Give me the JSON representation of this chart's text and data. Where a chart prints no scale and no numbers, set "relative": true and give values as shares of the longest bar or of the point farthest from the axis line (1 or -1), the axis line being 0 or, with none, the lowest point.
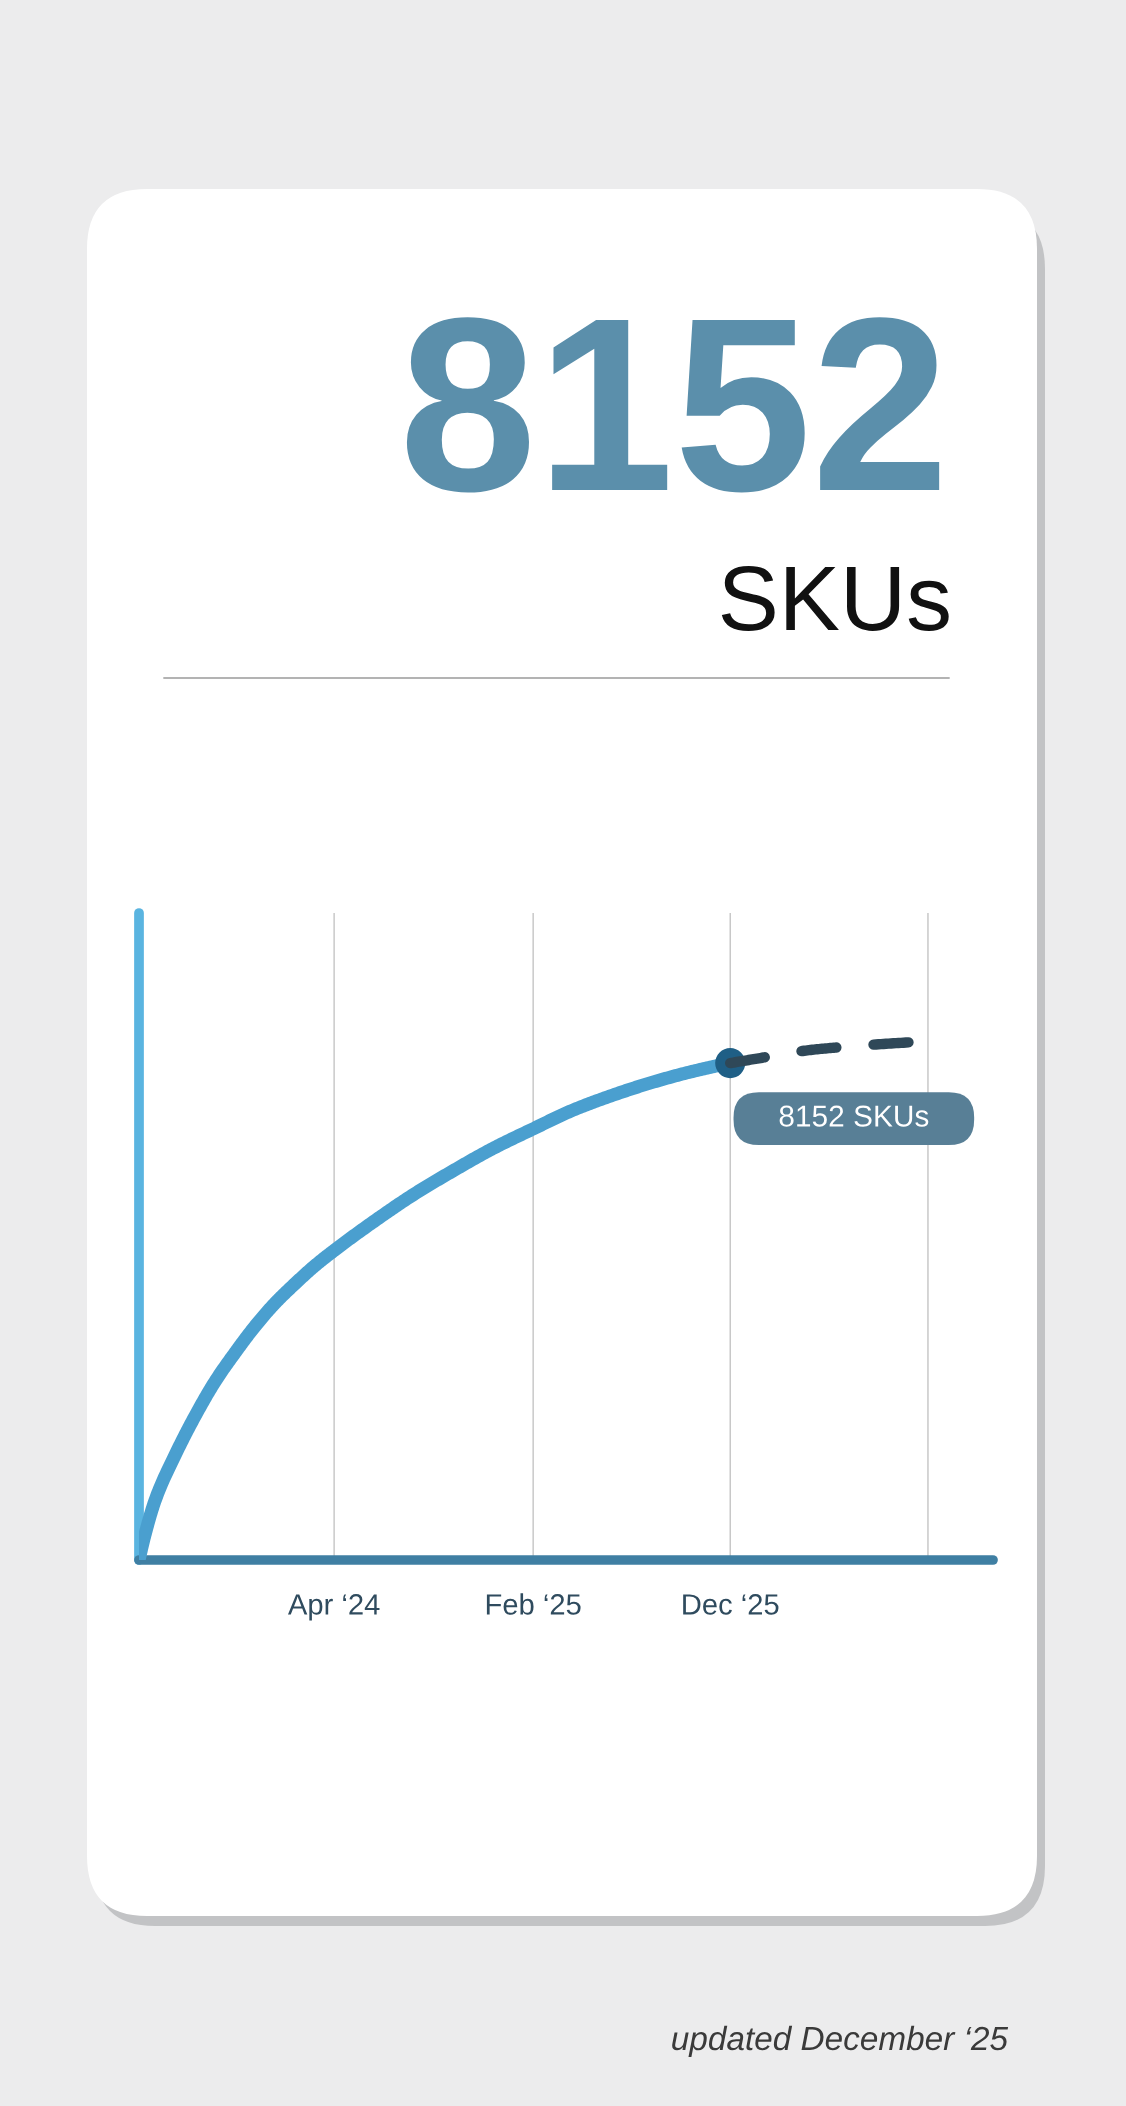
{
  "chart_data": {
    "type": "line",
    "title": "8152",
    "subtitle": "SKUs",
    "relative": true,
    "series": [
      {
        "type": "line",
        "color": "#4a9fcf",
        "line_style": "solid",
        "x": [
          "2023-06-06",
          "2023-06-15",
          "2023-07",
          "2023-08",
          "2023-09",
          "2023-10",
          "2023-11",
          "2023-12",
          "2024-01",
          "2024-02",
          "2024-03",
          "2024-04",
          "2024-06",
          "2024-08",
          "2024-10",
          "2024-12",
          "2025-02",
          "2025-04",
          "2025-06",
          "2025-08",
          "2025-10",
          "2025-12"
        ],
        "values": [
          0,
          0.048,
          0.116,
          0.204,
          0.28,
          0.345,
          0.401,
          0.451,
          0.496,
          0.534,
          0.567,
          0.598,
          0.654,
          0.706,
          0.752,
          0.795,
          0.833,
          0.868,
          0.897,
          0.922,
          0.943,
          0.96
        ]
      },
      {
        "type": "line",
        "color": "#2f4858",
        "line_style": "dashed",
        "x": [
          "2025-12",
          "2026-02",
          "2026-04",
          "2026-06",
          "2026-09"
        ],
        "values": [
          0.96,
          0.973,
          0.985,
          0.992,
          1
        ]
      },
      {
        "type": "scatter",
        "color": "#1f5f86",
        "marker": "circle",
        "x": [
          "2025-12"
        ],
        "values": [
          0.96
        ]
      }
    ],
    "xlim": [
      "2023-06-06",
      "2027-01-09"
    ],
    "xticks": [
      {
        "value": "2024-04",
        "label": "Apr ‘24"
      },
      {
        "value": "2025-02",
        "label": "Feb ‘25"
      },
      {
        "value": "2025-12",
        "label": "Dec ‘25"
      },
      {
        "value": "2026-10",
        "label": null
      }
    ],
    "grid": "x",
    "tick_labels": "x",
    "annotations": [
      {
        "text": "8152 SKUs",
        "x": "2025-12",
        "y": 0.96
      },
      "updated December ‘25"
    ]
  }
}
